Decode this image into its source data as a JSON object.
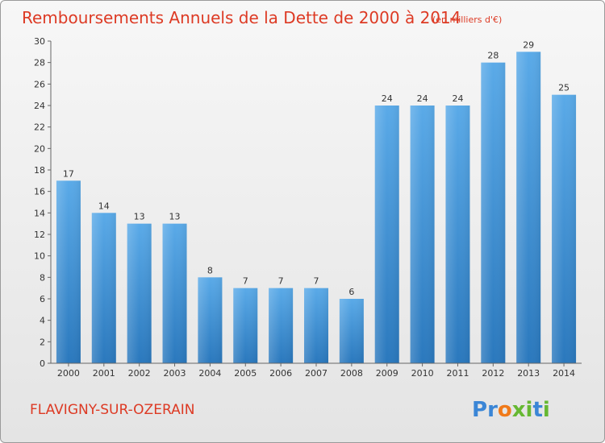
{
  "chart_data": {
    "type": "bar",
    "title": "Remboursements Annuels de la Dette de 2000 à 2014",
    "subtitle": "(en milliers d'€)",
    "categories": [
      "2000",
      "2001",
      "2002",
      "2003",
      "2004",
      "2005",
      "2006",
      "2007",
      "2008",
      "2009",
      "2010",
      "2011",
      "2012",
      "2013",
      "2014"
    ],
    "values": [
      17,
      14,
      13,
      13,
      8,
      7,
      7,
      7,
      6,
      24,
      24,
      24,
      28,
      29,
      25
    ],
    "ylim": [
      0,
      30
    ],
    "yticks": [
      0,
      2,
      4,
      6,
      8,
      10,
      12,
      14,
      16,
      18,
      20,
      22,
      24,
      26,
      28,
      30
    ],
    "xlabel": "",
    "ylabel": "",
    "grid": false,
    "bar_color_top": "#5aaae8",
    "bar_color_bottom": "#2a78bd"
  },
  "footer": {
    "city": "FLAVIGNY-SUR-OZERAIN",
    "logo_letters": [
      "P",
      "r",
      "o",
      "x",
      "i",
      "t",
      "i"
    ],
    "logo_colors": [
      "#3b86d6",
      "#3b86d6",
      "#f07a1a",
      "#66b832",
      "#66b832",
      "#3b86d6",
      "#66b832"
    ]
  }
}
